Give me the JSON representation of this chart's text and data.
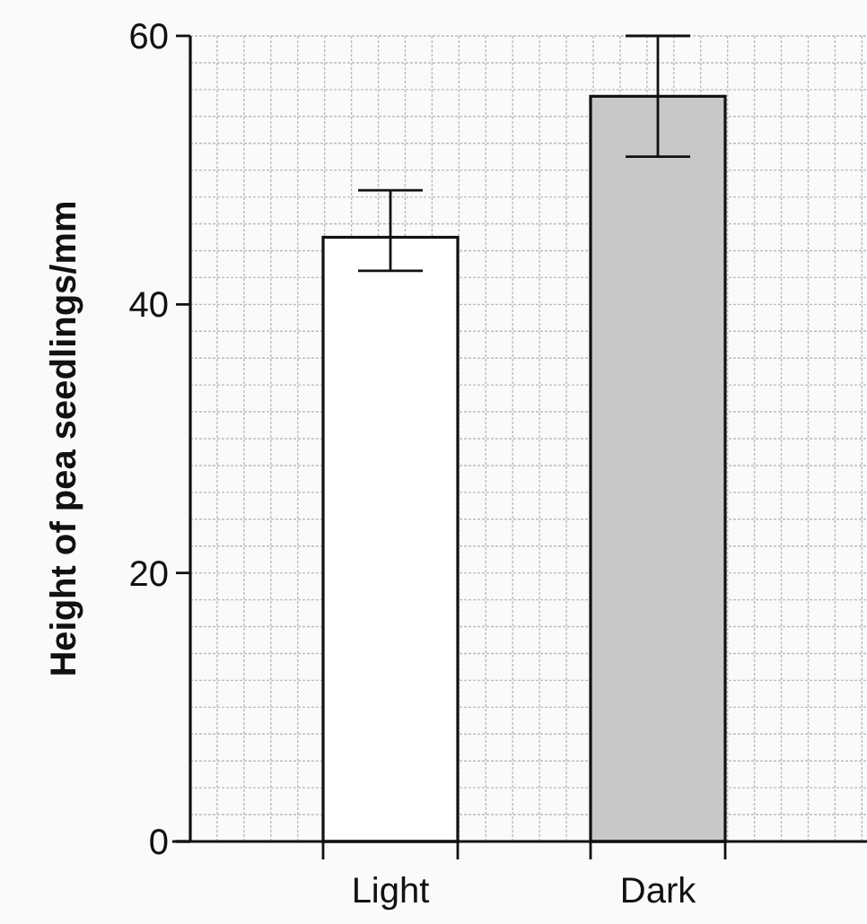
{
  "chart_data": {
    "type": "bar",
    "ylabel": "Height of pea seedlings/mm",
    "categories": [
      "Light",
      "Dark"
    ],
    "values": [
      45,
      55.5
    ],
    "colors": [
      "#ffffff",
      "#c8c8c8"
    ],
    "errors": [
      [
        42.5,
        48.5
      ],
      [
        51,
        60
      ]
    ],
    "ylim": [
      0,
      60
    ],
    "yticks": [
      0,
      20,
      40,
      60
    ],
    "grid": true
  }
}
